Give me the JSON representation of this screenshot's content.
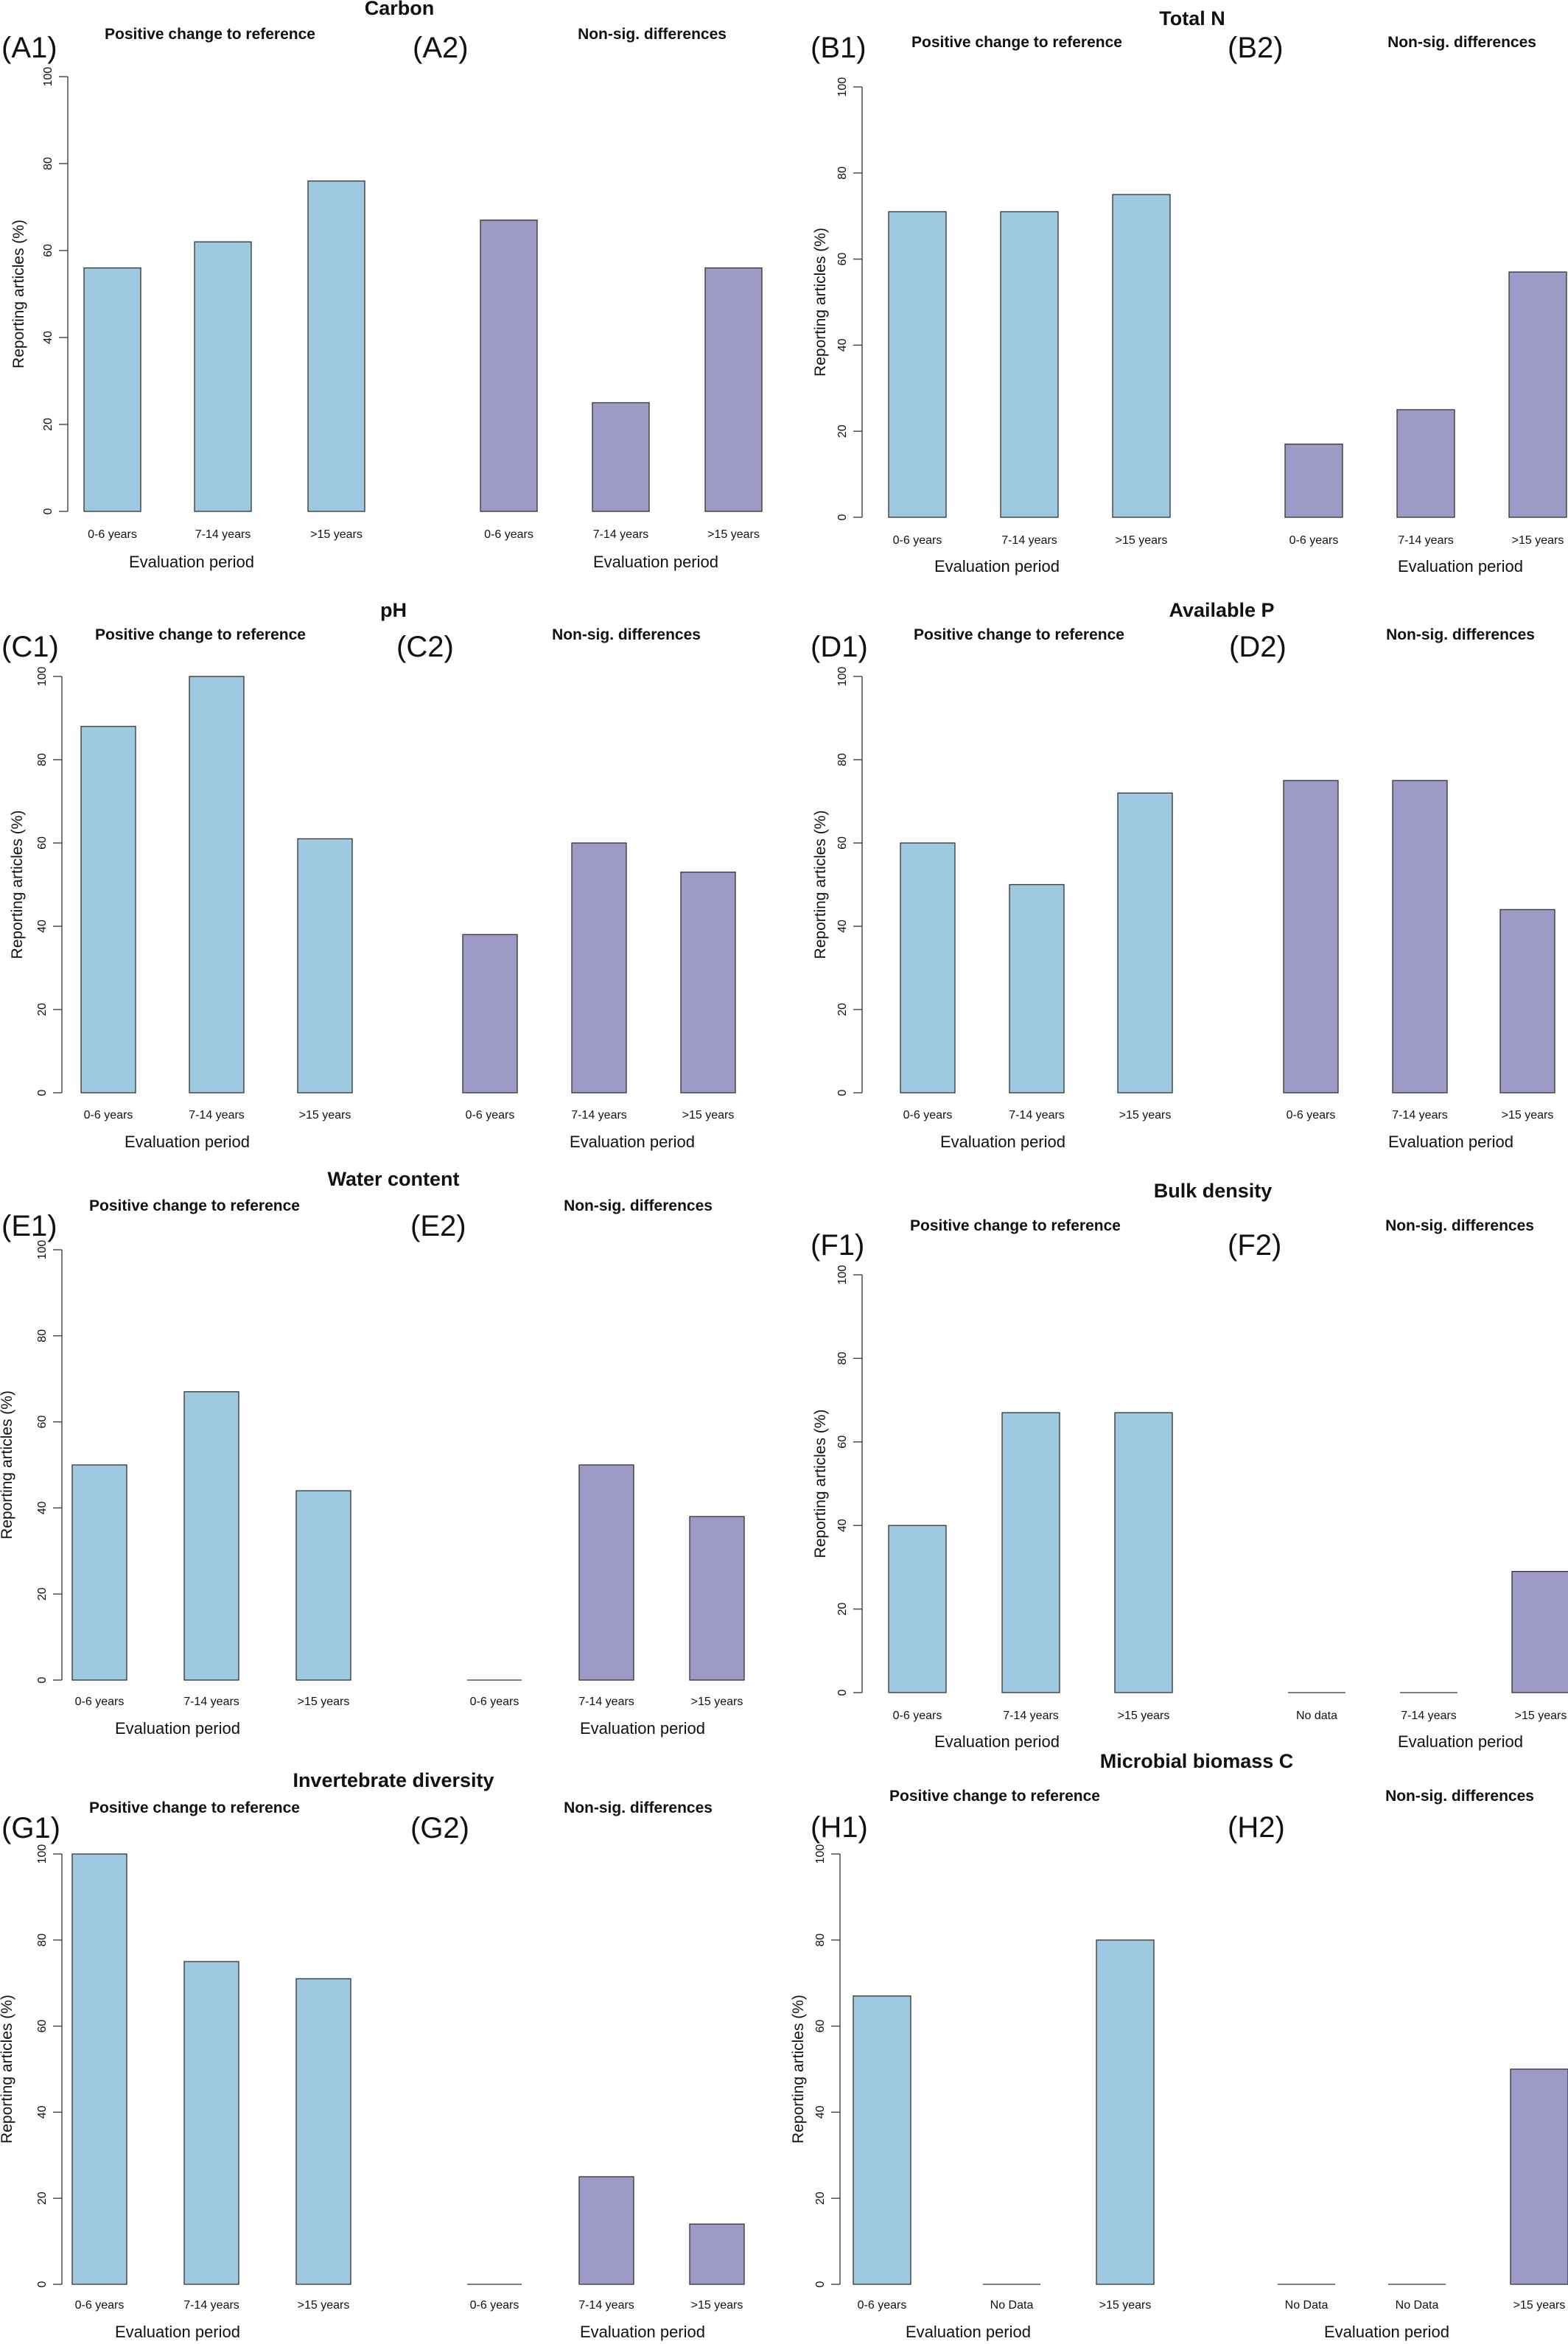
{
  "colors": {
    "positive": "#9ecae1",
    "nonsig": "#9e9ac8",
    "axis": "#333333"
  },
  "chart_data": [
    {
      "type": "bar",
      "title": "Carbon",
      "panels": [
        {
          "tag": "(A1)",
          "subtitle": "Positive change to reference",
          "categories": [
            "0-6 years",
            "7-14 years",
            ">15 years"
          ],
          "values": [
            56,
            62,
            76
          ],
          "xlabel": "Evaluation period",
          "ylabel": "Reporting articles (%)",
          "ylim": [
            0,
            100
          ],
          "yticks": [
            "0",
            "20",
            "40",
            "60",
            "80",
            "100"
          ],
          "color": "#9ecae1"
        },
        {
          "tag": "(A2)",
          "subtitle": "Non-sig. differences",
          "categories": [
            "0-6 years",
            "7-14 years",
            ">15 years"
          ],
          "values": [
            67,
            25,
            56
          ],
          "xlabel": "Evaluation period",
          "ylim": [
            0,
            100
          ],
          "color": "#9e9ac8"
        }
      ]
    },
    {
      "type": "bar",
      "title": "Total N",
      "panels": [
        {
          "tag": "(B1)",
          "subtitle": "Positive change to reference",
          "categories": [
            "0-6 years",
            "7-14 years",
            ">15 years"
          ],
          "values": [
            71,
            71,
            75
          ],
          "xlabel": "Evaluation period",
          "ylabel": "Reporting articles (%)",
          "ylim": [
            0,
            100
          ],
          "yticks": [
            "0",
            "20",
            "40",
            "60",
            "80",
            "100"
          ],
          "color": "#9ecae1"
        },
        {
          "tag": "(B2)",
          "subtitle": "Non-sig. differences",
          "categories": [
            "0-6 years",
            "7-14 years",
            ">15 years"
          ],
          "values": [
            17,
            25,
            57
          ],
          "xlabel": "Evaluation period",
          "ylim": [
            0,
            100
          ],
          "color": "#9e9ac8"
        }
      ]
    },
    {
      "type": "bar",
      "title": "pH",
      "panels": [
        {
          "tag": "(C1)",
          "subtitle": "Positive change to reference",
          "categories": [
            "0-6 years",
            "7-14 years",
            ">15 years"
          ],
          "values": [
            88,
            100,
            61
          ],
          "xlabel": "Evaluation period",
          "ylabel": "Reporting articles (%)",
          "ylim": [
            0,
            100
          ],
          "yticks": [
            "0",
            "20",
            "40",
            "60",
            "80",
            "100"
          ],
          "color": "#9ecae1"
        },
        {
          "tag": "(C2)",
          "subtitle": "Non-sig. differences",
          "categories": [
            "0-6 years",
            "7-14 years",
            ">15 years"
          ],
          "values": [
            38,
            60,
            53
          ],
          "xlabel": "Evaluation period",
          "ylim": [
            0,
            100
          ],
          "color": "#9e9ac8"
        }
      ]
    },
    {
      "type": "bar",
      "title": "Available P",
      "panels": [
        {
          "tag": "(D1)",
          "subtitle": "Positive change to reference",
          "categories": [
            "0-6 years",
            "7-14 years",
            ">15 years"
          ],
          "values": [
            60,
            50,
            72
          ],
          "xlabel": "Evaluation period",
          "ylabel": "Reporting articles (%)",
          "ylim": [
            0,
            100
          ],
          "yticks": [
            "0",
            "20",
            "40",
            "60",
            "80",
            "100"
          ],
          "color": "#9ecae1"
        },
        {
          "tag": "(D2)",
          "subtitle": "Non-sig. differences",
          "categories": [
            "0-6 years",
            "7-14 years",
            ">15 years"
          ],
          "values": [
            75,
            75,
            44
          ],
          "xlabel": "Evaluation period",
          "ylim": [
            0,
            100
          ],
          "color": "#9e9ac8"
        }
      ]
    },
    {
      "type": "bar",
      "title": "Water content",
      "panels": [
        {
          "tag": "(E1)",
          "subtitle": "Positive change to reference",
          "categories": [
            "0-6 years",
            "7-14 years",
            ">15 years"
          ],
          "values": [
            50,
            67,
            44
          ],
          "xlabel": "Evaluation period",
          "ylabel": "Reporting articles (%)",
          "ylim": [
            0,
            100
          ],
          "yticks": [
            "0",
            "20",
            "40",
            "60",
            "80",
            "100"
          ],
          "color": "#9ecae1"
        },
        {
          "tag": "(E2)",
          "subtitle": "Non-sig. differences",
          "categories": [
            "0-6 years",
            "7-14 years",
            ">15 years"
          ],
          "values": [
            0,
            50,
            38
          ],
          "xlabel": "Evaluation period",
          "ylim": [
            0,
            100
          ],
          "color": "#9e9ac8"
        }
      ]
    },
    {
      "type": "bar",
      "title": "Bulk density",
      "panels": [
        {
          "tag": "(F1)",
          "subtitle": "Positive change to reference",
          "categories": [
            "0-6 years",
            "7-14 years",
            ">15 years"
          ],
          "values": [
            40,
            67,
            67
          ],
          "xlabel": "Evaluation period",
          "ylabel": "Reporting articles (%)",
          "ylim": [
            0,
            100
          ],
          "yticks": [
            "0",
            "20",
            "40",
            "60",
            "80",
            "100"
          ],
          "color": "#9ecae1"
        },
        {
          "tag": "(F2)",
          "subtitle": "Non-sig. differences",
          "categories": [
            "No data",
            "7-14 years",
            ">15 years"
          ],
          "values": [
            0,
            0,
            29
          ],
          "xlabel": "Evaluation period",
          "ylim": [
            0,
            100
          ],
          "color": "#9e9ac8"
        }
      ]
    },
    {
      "type": "bar",
      "title": "Invertebrate diversity",
      "panels": [
        {
          "tag": "(G1)",
          "subtitle": "Positive change to reference",
          "categories": [
            "0-6 years",
            "7-14 years",
            ">15 years"
          ],
          "values": [
            100,
            75,
            71
          ],
          "xlabel": "Evaluation period",
          "ylabel": "Reporting articles (%)",
          "ylim": [
            0,
            100
          ],
          "yticks": [
            "0",
            "20",
            "40",
            "60",
            "80",
            "100"
          ],
          "color": "#9ecae1"
        },
        {
          "tag": "(G2)",
          "subtitle": "Non-sig. differences",
          "categories": [
            "0-6 years",
            "7-14 years",
            ">15 years"
          ],
          "values": [
            0,
            25,
            14
          ],
          "xlabel": "Evaluation period",
          "ylim": [
            0,
            100
          ],
          "color": "#9e9ac8"
        }
      ]
    },
    {
      "type": "bar",
      "title": "Microbial biomass C",
      "panels": [
        {
          "tag": "(H1)",
          "subtitle": "Positive change to reference",
          "categories": [
            "0-6 years",
            "No Data",
            ">15 years"
          ],
          "values": [
            67,
            0,
            80
          ],
          "xlabel": "Evaluation period",
          "ylabel": "Reporting articles (%)",
          "ylim": [
            0,
            100
          ],
          "yticks": [
            "0",
            "20",
            "40",
            "60",
            "80",
            "100"
          ],
          "color": "#9ecae1"
        },
        {
          "tag": "(H2)",
          "subtitle": "Non-sig. differences",
          "categories": [
            "No Data",
            "No Data",
            ">15 years"
          ],
          "values": [
            0,
            0,
            50
          ],
          "xlabel": "Evaluation period",
          "ylim": [
            0,
            100
          ],
          "color": "#9e9ac8"
        }
      ]
    }
  ]
}
